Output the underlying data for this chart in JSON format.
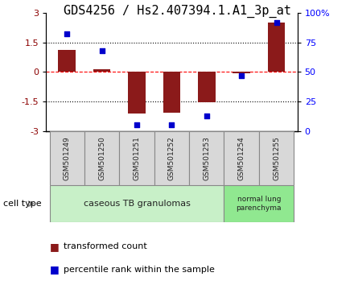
{
  "title": "GDS4256 / Hs2.407394.1.A1_3p_at",
  "samples": [
    "GSM501249",
    "GSM501250",
    "GSM501251",
    "GSM501252",
    "GSM501253",
    "GSM501254",
    "GSM501255"
  ],
  "transformed_count": [
    1.1,
    0.15,
    -2.1,
    -2.05,
    -1.55,
    -0.08,
    2.5
  ],
  "percentile_rank": [
    82,
    68,
    5,
    5,
    13,
    47,
    92
  ],
  "ylim_left": [
    -3,
    3
  ],
  "ylim_right": [
    0,
    100
  ],
  "yticks_left": [
    -3,
    -1.5,
    0,
    1.5,
    3
  ],
  "ytick_labels_left": [
    "-3",
    "-1.5",
    "0",
    "1.5",
    "3"
  ],
  "yticks_right": [
    0,
    25,
    50,
    75,
    100
  ],
  "ytick_labels_right": [
    "0",
    "25",
    "50",
    "75",
    "100%"
  ],
  "bar_color": "#8B1A1A",
  "dot_color": "#0000CC",
  "bar_width": 0.5,
  "group1_label": "caseous TB granulomas",
  "group2_label": "normal lung\nparenchyma",
  "group1_color": "#c8f0c8",
  "group2_color": "#90e890",
  "cell_type_label": "cell type",
  "legend_red_label": "transformed count",
  "legend_blue_label": "percentile rank within the sample",
  "title_fontsize": 11,
  "tick_fontsize": 8,
  "sample_fontsize": 6.5,
  "legend_fontsize": 8,
  "cell_type_fontsize": 8,
  "group_label_fontsize": 8
}
